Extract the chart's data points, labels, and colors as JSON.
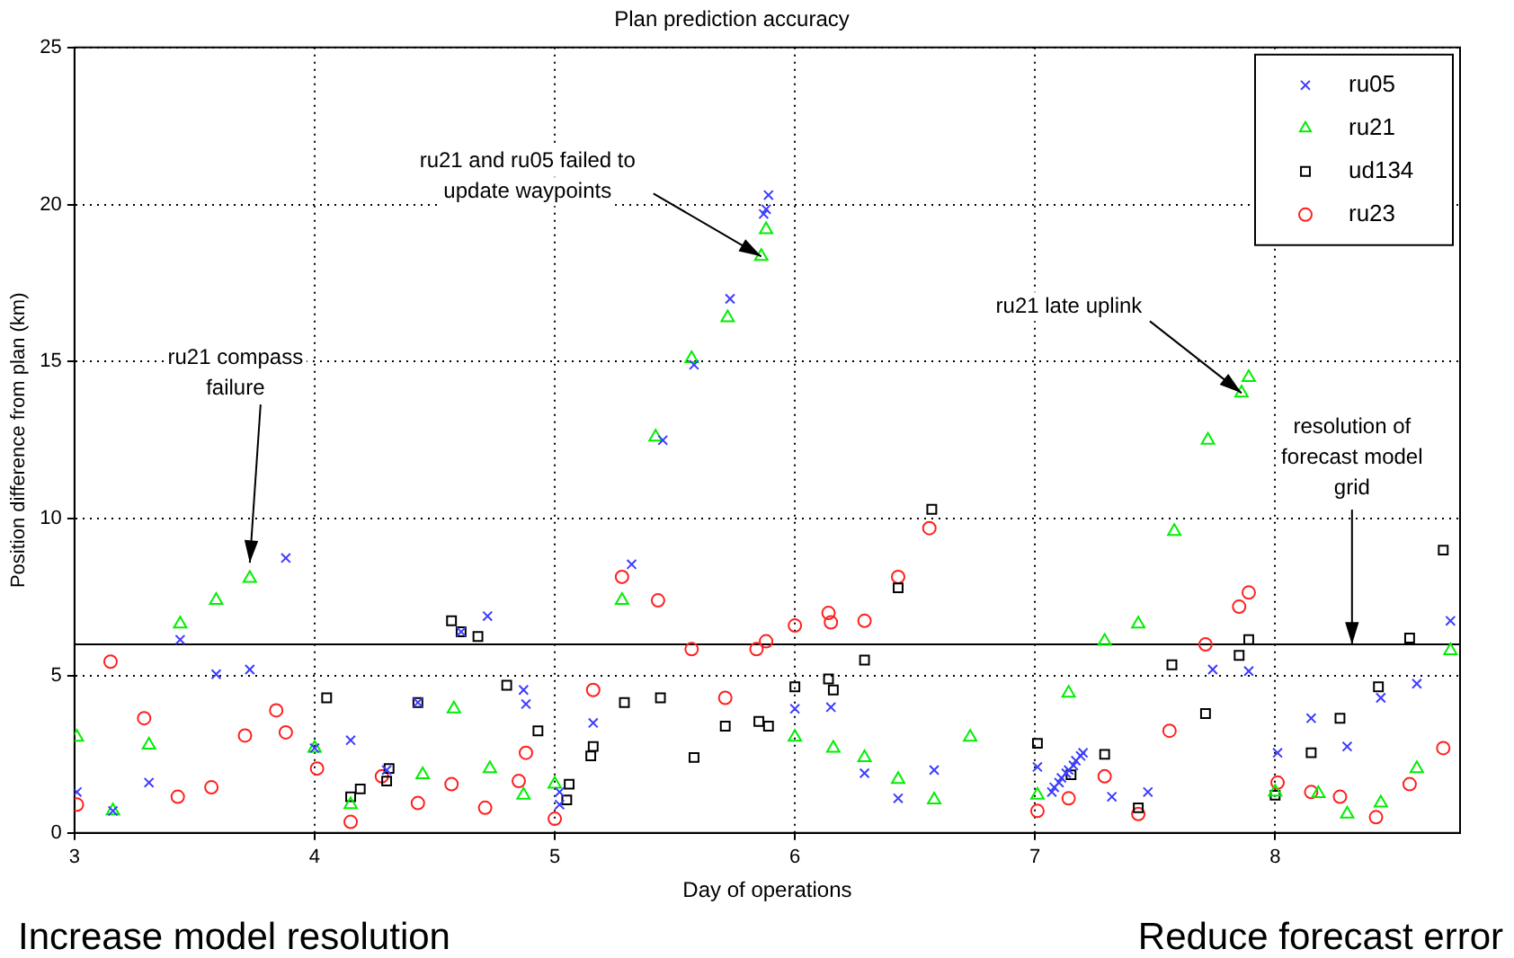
{
  "chart_data": {
    "type": "scatter",
    "title": "Plan prediction accuracy",
    "xlabel": "Day of operations",
    "ylabel": "Position difference from plan (km)",
    "xlim": [
      3,
      8.77
    ],
    "xticks": [
      3,
      4,
      5,
      6,
      7,
      8
    ],
    "ylim": [
      0,
      25
    ],
    "yticks": [
      0,
      5,
      10,
      15,
      20,
      25
    ],
    "grid": true,
    "legend": "top right",
    "series": [
      {
        "name": "ru05",
        "color": "#3c3cff",
        "marker": "cross",
        "x": [
          3.01,
          3.16,
          3.31,
          3.44,
          3.59,
          3.73,
          3.88,
          4.0,
          4.15,
          4.3,
          4.43,
          4.61,
          4.72,
          4.87,
          4.88,
          5.02,
          5.02,
          5.16,
          5.32,
          5.45,
          5.58,
          5.73,
          5.87,
          5.88,
          5.89,
          6.0,
          6.15,
          6.29,
          6.43,
          6.58,
          7.01,
          7.07,
          7.08,
          7.1,
          7.11,
          7.13,
          7.14,
          7.16,
          7.17,
          7.19,
          7.2,
          7.32,
          7.47,
          7.74,
          7.89,
          8.01,
          8.15,
          8.3,
          8.44,
          8.59,
          8.73
        ],
        "values": [
          1.3,
          0.7,
          1.6,
          6.15,
          5.05,
          5.2,
          8.75,
          2.7,
          2.95,
          2.0,
          4.15,
          6.4,
          6.9,
          4.55,
          4.1,
          1.3,
          0.9,
          3.5,
          8.55,
          12.5,
          14.9,
          17.0,
          19.7,
          19.85,
          20.3,
          3.95,
          4.0,
          1.9,
          1.1,
          2.0,
          2.1,
          1.3,
          1.45,
          1.6,
          1.75,
          1.9,
          2.0,
          2.15,
          2.3,
          2.45,
          2.55,
          1.15,
          1.3,
          5.2,
          5.15,
          2.55,
          3.65,
          2.75,
          4.3,
          4.75,
          6.75
        ]
      },
      {
        "name": "ru21",
        "color": "#00ee00",
        "marker": "triangle",
        "x": [
          3.01,
          3.16,
          3.31,
          3.44,
          3.59,
          3.73,
          4.0,
          4.15,
          4.45,
          4.58,
          4.73,
          4.87,
          5.0,
          5.28,
          5.42,
          5.57,
          5.72,
          5.86,
          5.88,
          6.0,
          6.16,
          6.29,
          6.43,
          6.58,
          6.73,
          7.01,
          7.14,
          7.29,
          7.43,
          7.58,
          7.72,
          7.86,
          7.89,
          8.0,
          8.18,
          8.3,
          8.44,
          8.59,
          8.73
        ],
        "values": [
          3.05,
          0.7,
          2.8,
          6.65,
          7.4,
          8.1,
          2.7,
          0.9,
          1.85,
          3.95,
          2.05,
          1.2,
          1.55,
          7.4,
          12.6,
          15.1,
          16.4,
          18.35,
          19.2,
          3.05,
          2.7,
          2.4,
          1.7,
          1.05,
          3.05,
          1.2,
          4.45,
          6.1,
          6.65,
          9.6,
          12.5,
          14.0,
          14.5,
          1.3,
          1.25,
          0.6,
          0.95,
          2.05,
          5.8
        ]
      },
      {
        "name": "ud134",
        "color": "#000000",
        "marker": "square",
        "x": [
          4.05,
          4.15,
          4.19,
          4.3,
          4.31,
          4.43,
          4.57,
          4.61,
          4.68,
          4.8,
          4.93,
          5.05,
          5.06,
          5.15,
          5.16,
          5.29,
          5.44,
          5.58,
          5.71,
          5.85,
          5.89,
          6.0,
          6.14,
          6.16,
          6.29,
          6.43,
          6.57,
          7.01,
          7.15,
          7.29,
          7.43,
          7.57,
          7.71,
          7.85,
          7.89,
          8.0,
          8.15,
          8.27,
          8.43,
          8.56,
          8.7
        ],
        "values": [
          4.3,
          1.15,
          1.4,
          1.65,
          2.05,
          4.15,
          6.75,
          6.4,
          6.25,
          4.7,
          3.25,
          1.05,
          1.55,
          2.45,
          2.75,
          4.15,
          4.3,
          2.4,
          3.4,
          3.55,
          3.4,
          4.65,
          4.9,
          4.55,
          5.5,
          7.8,
          10.3,
          2.85,
          1.85,
          2.5,
          0.8,
          5.35,
          3.8,
          5.65,
          6.15,
          1.2,
          2.55,
          3.65,
          4.65,
          6.2,
          9.0
        ]
      },
      {
        "name": "ru23",
        "color": "#ff2020",
        "marker": "circle",
        "x": [
          3.01,
          3.15,
          3.29,
          3.43,
          3.57,
          3.71,
          3.84,
          3.88,
          4.01,
          4.15,
          4.28,
          4.43,
          4.57,
          4.71,
          4.85,
          4.88,
          5.0,
          5.16,
          5.28,
          5.43,
          5.57,
          5.71,
          5.84,
          5.88,
          6.0,
          6.14,
          6.15,
          6.29,
          6.43,
          6.56,
          7.01,
          7.14,
          7.29,
          7.43,
          7.56,
          7.71,
          7.85,
          7.89,
          8.01,
          8.15,
          8.27,
          8.42,
          8.56,
          8.7
        ],
        "values": [
          0.9,
          5.45,
          3.65,
          1.15,
          1.45,
          3.1,
          3.9,
          3.2,
          2.05,
          0.35,
          1.8,
          0.95,
          1.55,
          0.8,
          1.65,
          2.55,
          0.45,
          4.55,
          8.15,
          7.4,
          5.85,
          4.3,
          5.85,
          6.1,
          6.6,
          7.0,
          6.7,
          6.75,
          8.15,
          9.7,
          0.7,
          1.1,
          1.8,
          0.6,
          3.25,
          6.0,
          7.2,
          7.65,
          1.6,
          1.3,
          1.15,
          0.5,
          1.55,
          2.7
        ]
      }
    ],
    "ref_lines": [
      {
        "axis": "y",
        "value": 6,
        "color": "#000000"
      }
    ],
    "annotations": [
      {
        "text": "ru21 compass failure",
        "x": 3.73,
        "y": 8.6
      },
      {
        "text": "ru21 and ru05 failed to update waypoints",
        "x": 5.86,
        "y": 18.35
      },
      {
        "text": "ru21 late uplink",
        "x": 7.86,
        "y": 14.0
      },
      {
        "text": "resolution of forecast model grid",
        "x": 8.32,
        "y": 6
      },
      "Increase model resolution",
      "Reduce forecast error"
    ]
  }
}
